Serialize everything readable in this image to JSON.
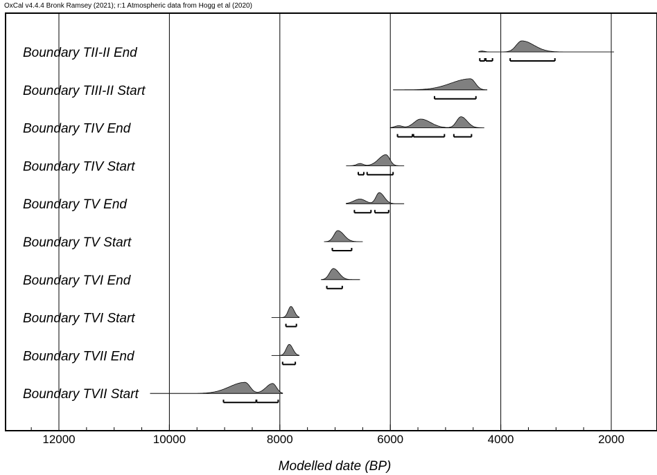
{
  "header": {
    "source_text": "OxCal v4.4.4 Bronk Ramsey (2021); r:1 Atmospheric data from Hogg et al (2020)"
  },
  "colors": {
    "distribution_fill": "#808080",
    "distribution_stroke": "#000000",
    "baseline": "#888888",
    "range_bar": "#000000",
    "frame": "#000000",
    "gridline": "#000000"
  },
  "chart_data": {
    "type": "density-plot",
    "xlabel": "Modelled date (BP)",
    "x_axis": {
      "direction": "decreasing",
      "xlim": [
        13000,
        1700
      ],
      "major_ticks": [
        12000,
        10000,
        8000,
        6000,
        4000,
        2000
      ],
      "tick_labels": [
        "12000",
        "10000",
        "8000",
        "6000",
        "4000",
        "2000"
      ],
      "minor_tick_interval": 500
    },
    "grid": "vertical lines at major ticks",
    "rows": [
      {
        "label": "Boundary TII-II End",
        "baseline_range": [
          4400,
          1950
        ],
        "peaks": [
          {
            "center": 3620,
            "height": 1.0,
            "sigma_old": 100,
            "sigma_young": 220
          },
          {
            "center": 4340,
            "height": 0.08,
            "sigma_old": 50,
            "sigma_young": 50
          }
        ],
        "range_bars": [
          [
            4380,
            4290
          ],
          [
            4270,
            4150
          ],
          [
            3830,
            3020
          ]
        ]
      },
      {
        "label": "Boundary TIII-II Start",
        "baseline_range": [
          5950,
          4250
        ],
        "peaks": [
          {
            "center": 4550,
            "height": 1.0,
            "sigma_old": 350,
            "sigma_young": 90
          }
        ],
        "range_bars": [
          [
            5200,
            4450
          ]
        ]
      },
      {
        "label": "Boundary TIV End",
        "baseline_range": [
          6000,
          4300
        ],
        "peaks": [
          {
            "center": 5450,
            "height": 0.75,
            "sigma_old": 120,
            "sigma_young": 180
          },
          {
            "center": 4720,
            "height": 0.95,
            "sigma_old": 80,
            "sigma_young": 110
          },
          {
            "center": 5850,
            "height": 0.18,
            "sigma_old": 70,
            "sigma_young": 70
          }
        ],
        "range_bars": [
          [
            5870,
            5600
          ],
          [
            5580,
            5020
          ],
          [
            4850,
            4530
          ]
        ]
      },
      {
        "label": "Boundary TIV Start",
        "baseline_range": [
          6800,
          5750
        ],
        "peaks": [
          {
            "center": 6080,
            "height": 1.0,
            "sigma_old": 130,
            "sigma_young": 70
          },
          {
            "center": 6550,
            "height": 0.2,
            "sigma_old": 60,
            "sigma_young": 60
          }
        ],
        "range_bars": [
          [
            6580,
            6480
          ],
          [
            6420,
            5950
          ]
        ]
      },
      {
        "label": "Boundary TV End",
        "baseline_range": [
          6800,
          5750
        ],
        "peaks": [
          {
            "center": 6200,
            "height": 1.0,
            "sigma_old": 60,
            "sigma_young": 90
          },
          {
            "center": 6550,
            "height": 0.42,
            "sigma_old": 110,
            "sigma_young": 100
          }
        ],
        "range_bars": [
          [
            6650,
            6350
          ],
          [
            6280,
            6030
          ]
        ]
      },
      {
        "label": "Boundary TV Start",
        "baseline_range": [
          7200,
          6500
        ],
        "peaks": [
          {
            "center": 6950,
            "height": 1.0,
            "sigma_old": 70,
            "sigma_young": 110
          }
        ],
        "range_bars": [
          [
            7050,
            6700
          ]
        ]
      },
      {
        "label": "Boundary TVI End",
        "baseline_range": [
          7250,
          6550
        ],
        "peaks": [
          {
            "center": 7030,
            "height": 1.0,
            "sigma_old": 70,
            "sigma_young": 100
          }
        ],
        "range_bars": [
          [
            7150,
            6870
          ]
        ]
      },
      {
        "label": "Boundary TVI Start",
        "baseline_range": [
          8150,
          7650
        ],
        "peaks": [
          {
            "center": 7800,
            "height": 1.0,
            "sigma_old": 50,
            "sigma_young": 60
          }
        ],
        "range_bars": [
          [
            7890,
            7700
          ]
        ]
      },
      {
        "label": "Boundary TVII End",
        "baseline_range": [
          8150,
          7650
        ],
        "peaks": [
          {
            "center": 7830,
            "height": 1.0,
            "sigma_old": 55,
            "sigma_young": 65
          }
        ],
        "range_bars": [
          [
            7950,
            7720
          ]
        ]
      },
      {
        "label": "Boundary TVII Start",
        "baseline_range": [
          10350,
          7950
        ],
        "peaks": [
          {
            "center": 8630,
            "height": 1.0,
            "sigma_old": 280,
            "sigma_young": 90
          },
          {
            "center": 8130,
            "height": 0.9,
            "sigma_old": 120,
            "sigma_young": 70
          }
        ],
        "range_bars": [
          [
            9020,
            8430
          ],
          [
            8420,
            8030
          ]
        ]
      }
    ]
  }
}
